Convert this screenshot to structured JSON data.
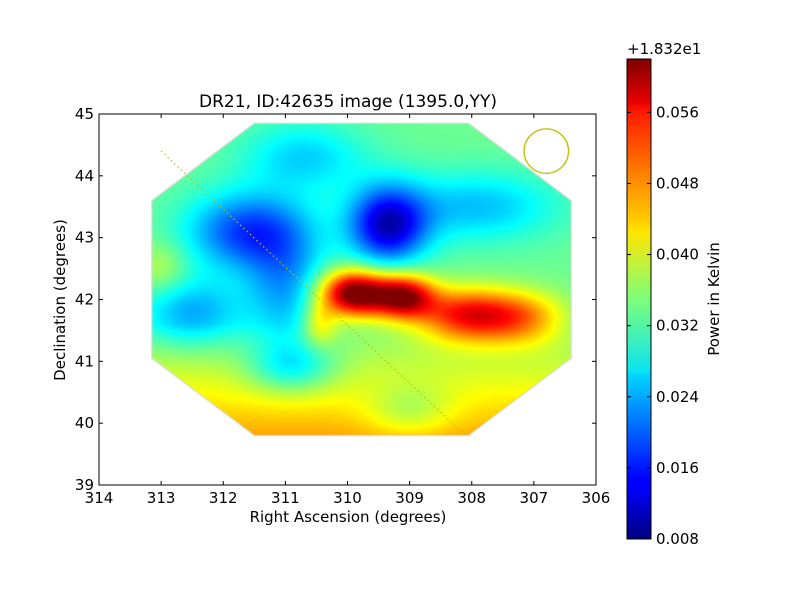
{
  "chart_data": {
    "type": "heatmap",
    "title": "DR21, ID:42635 image (1395.0,YY)",
    "xlabel": "Right Ascension (degrees)",
    "ylabel": "Declination (degrees)",
    "xlim": [
      314,
      306
    ],
    "ylim": [
      39,
      45
    ],
    "x_ticks": [
      314,
      313,
      312,
      311,
      310,
      309,
      308,
      307,
      306
    ],
    "x_tick_labels": [
      "314",
      "313",
      "312",
      "311",
      "310",
      "309",
      "308",
      "307",
      "306"
    ],
    "y_ticks": [
      39,
      40,
      41,
      42,
      43,
      44,
      45
    ],
    "y_tick_labels": [
      "39",
      "40",
      "41",
      "42",
      "43",
      "44",
      "45"
    ],
    "grid": false,
    "colormap": "jet",
    "image_footprint": [
      [
        311.5,
        44.85
      ],
      [
        308.05,
        44.85
      ],
      [
        306.4,
        43.6
      ],
      [
        306.4,
        41.05
      ],
      [
        308.05,
        39.8
      ],
      [
        311.5,
        39.8
      ],
      [
        313.15,
        41.05
      ],
      [
        313.15,
        43.6
      ]
    ],
    "background_level": 0.034,
    "emission_components": [
      {
        "ra": 309.9,
        "dec": 42.1,
        "peak": 0.03,
        "sigma_ra": 0.38,
        "sigma_dec": 0.26
      },
      {
        "ra": 309.1,
        "dec": 42.05,
        "peak": 0.026,
        "sigma_ra": 0.35,
        "sigma_dec": 0.25
      },
      {
        "ra": 308.1,
        "dec": 41.75,
        "peak": 0.02,
        "sigma_ra": 0.55,
        "sigma_dec": 0.3
      },
      {
        "ra": 307.2,
        "dec": 41.7,
        "peak": 0.013,
        "sigma_ra": 0.5,
        "sigma_dec": 0.3
      },
      {
        "ra": 310.45,
        "dec": 41.6,
        "peak": 0.009,
        "sigma_ra": 0.2,
        "sigma_dec": 0.25
      },
      {
        "ra": 309.35,
        "dec": 43.2,
        "peak": -0.022,
        "sigma_ra": 0.45,
        "sigma_dec": 0.45
      },
      {
        "ra": 311.6,
        "dec": 43.1,
        "peak": -0.016,
        "sigma_ra": 0.7,
        "sigma_dec": 0.45
      },
      {
        "ra": 311.0,
        "dec": 42.2,
        "peak": -0.01,
        "sigma_ra": 0.45,
        "sigma_dec": 0.65
      },
      {
        "ra": 312.5,
        "dec": 41.8,
        "peak": -0.01,
        "sigma_ra": 0.6,
        "sigma_dec": 0.4
      },
      {
        "ra": 310.9,
        "dec": 40.9,
        "peak": -0.01,
        "sigma_ra": 0.5,
        "sigma_dec": 0.3
      },
      {
        "ra": 310.7,
        "dec": 44.3,
        "peak": -0.008,
        "sigma_ra": 0.7,
        "sigma_dec": 0.4
      },
      {
        "ra": 307.9,
        "dec": 43.5,
        "peak": -0.009,
        "sigma_ra": 0.9,
        "sigma_dec": 0.4
      },
      {
        "ra": 309.0,
        "dec": 40.2,
        "peak": -0.006,
        "sigma_ra": 0.5,
        "sigma_dec": 0.3
      },
      {
        "ra": 313.0,
        "dec": 42.5,
        "peak": 0.005,
        "sigma_ra": 0.3,
        "sigma_dec": 0.3
      }
    ],
    "beam": {
      "ra": 306.8,
      "dec": 44.4,
      "radius_deg": 0.36,
      "color": "#bfbf00"
    },
    "scan_line": {
      "start": [
        313.0,
        44.4
      ],
      "end": [
        308.1,
        39.8
      ],
      "color": "#bfbf00",
      "style": "dotted"
    },
    "colorbar": {
      "label": "Power in Kelvin",
      "offset_label": "+1.832e1",
      "range": [
        0.008,
        0.062
      ],
      "ticks": [
        0.008,
        0.016,
        0.024,
        0.032,
        0.04,
        0.048,
        0.056
      ],
      "tick_labels": [
        "0.008",
        "0.016",
        "0.024",
        "0.032",
        "0.040",
        "0.048",
        "0.056"
      ]
    }
  }
}
